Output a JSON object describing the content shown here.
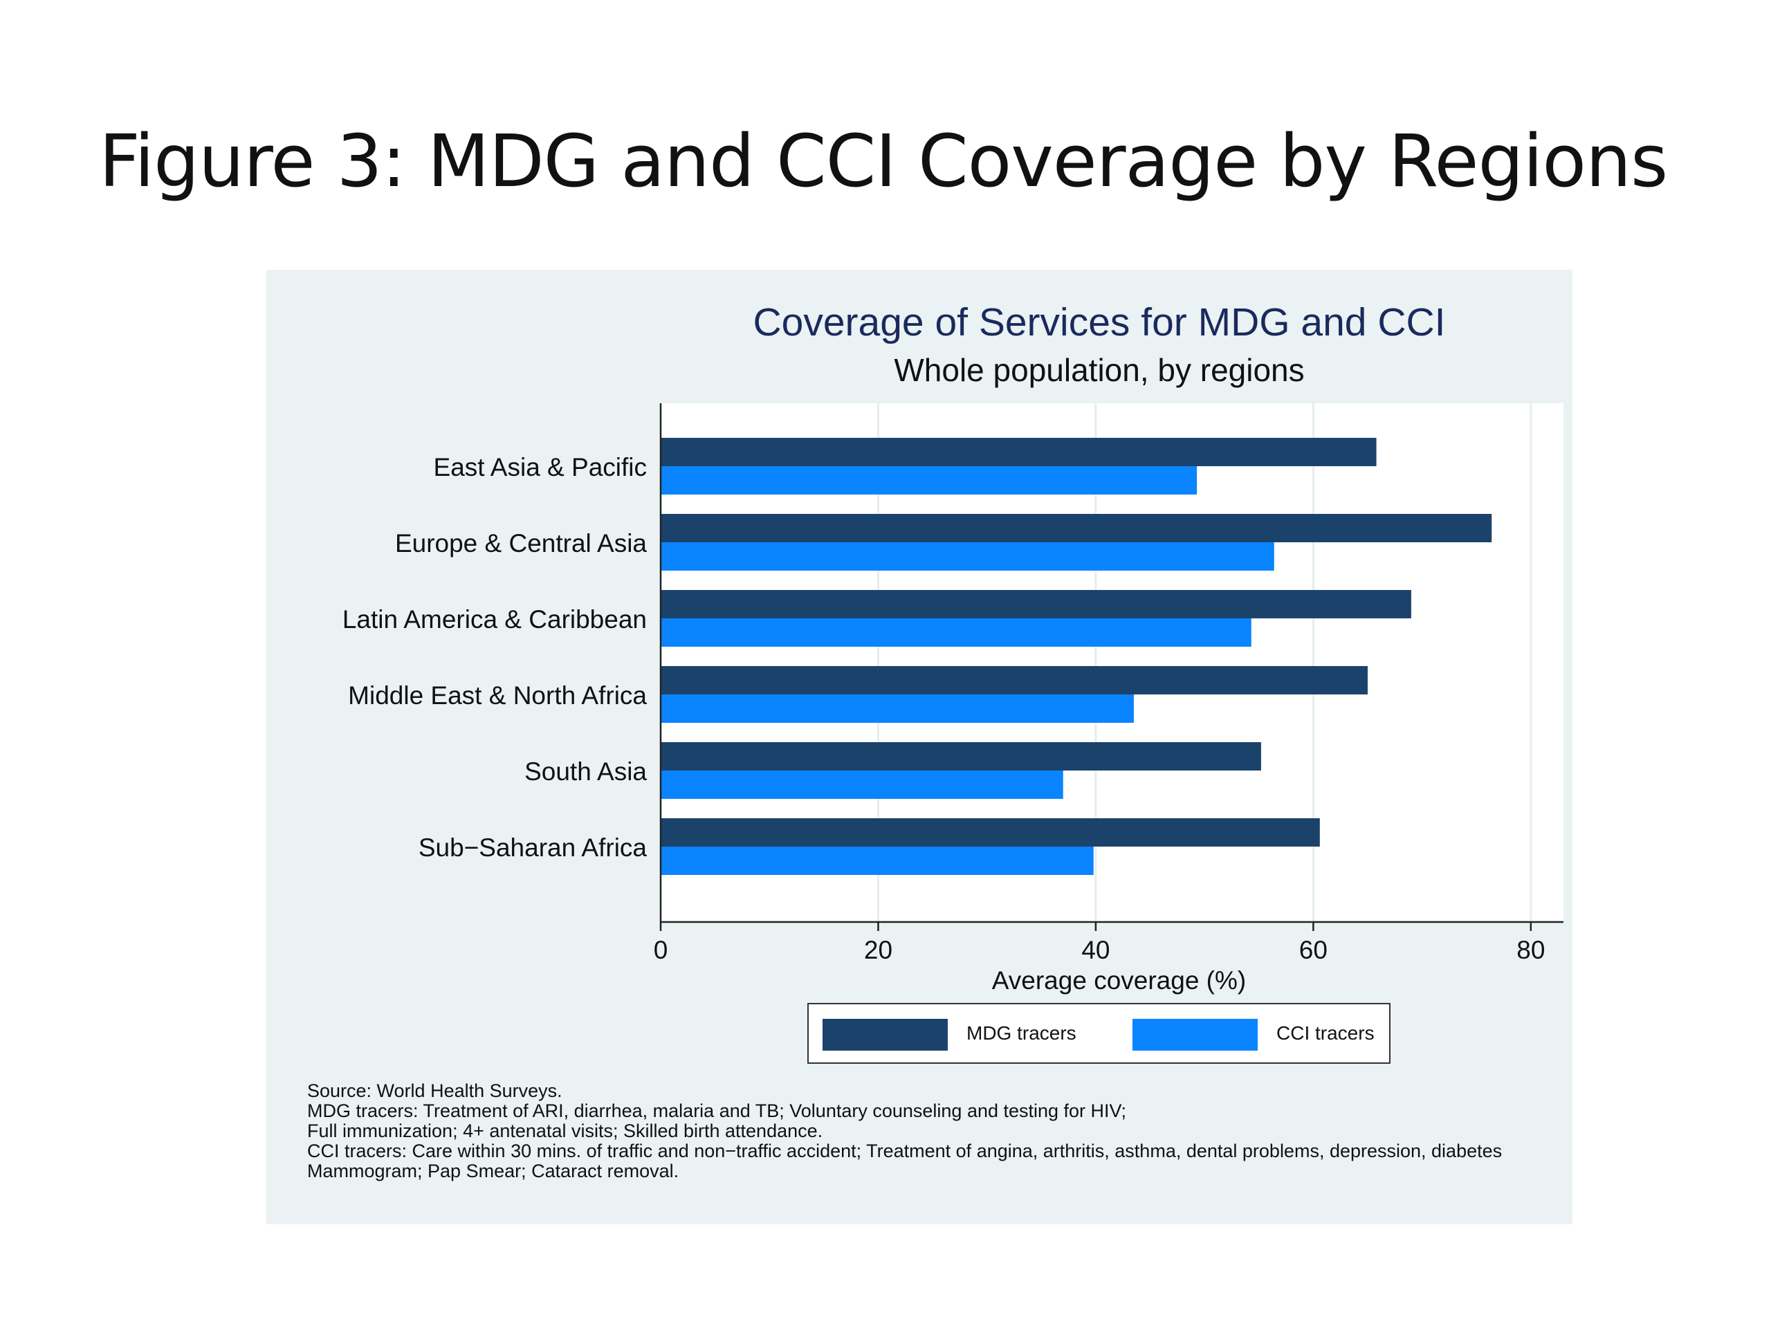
{
  "slide": {
    "title": "Figure 3: MDG and CCI Coverage by Regions"
  },
  "chart_data": {
    "type": "bar",
    "orientation": "horizontal",
    "title": "Coverage of Services for MDG and CCI",
    "subtitle": "Whole population, by regions",
    "xlabel": "Average coverage (%)",
    "ylabel": "",
    "xlim": [
      0,
      83
    ],
    "xticks": [
      0,
      20,
      40,
      60,
      80
    ],
    "grid": true,
    "legend_position": "bottom",
    "categories": [
      "East Asia & Pacific",
      "Europe & Central Asia",
      "Latin America & Caribbean",
      "Middle East & North Africa",
      "South Asia",
      "Sub−Saharan Africa"
    ],
    "series": [
      {
        "name": "MDG tracers",
        "color": "#1b426b",
        "values": [
          65.8,
          76.4,
          69.0,
          65.0,
          55.2,
          60.6
        ]
      },
      {
        "name": "CCI tracers",
        "color": "#0a84ff",
        "values": [
          49.3,
          56.4,
          54.3,
          43.5,
          37.0,
          39.8
        ]
      }
    ],
    "notes": [
      "Source: World Health Surveys.",
      "MDG tracers: Treatment of ARI, diarrhea, malaria and TB; Voluntary counseling and testing for HIV;",
      "Full immunization; 4+ antenatal visits; Skilled birth attendance.",
      "CCI tracers: Care within 30 mins. of traffic and non−traffic accident; Treatment of angina, arthritis, asthma, dental problems, depression, diabetes",
      "Mammogram; Pap Smear; Cataract removal."
    ]
  }
}
